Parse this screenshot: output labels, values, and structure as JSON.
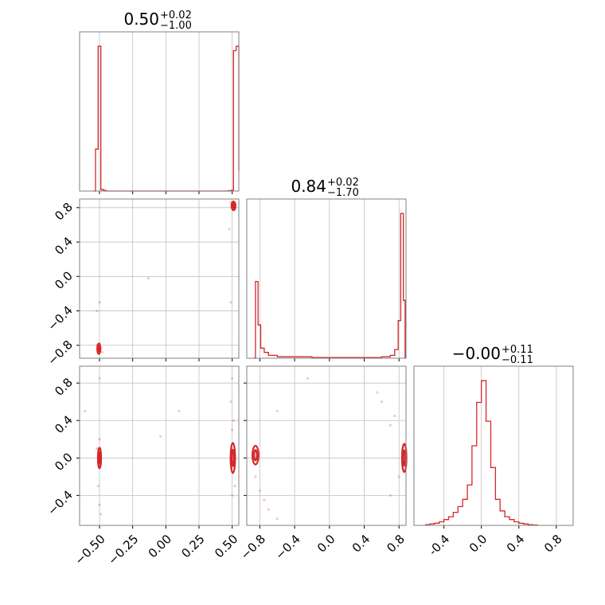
{
  "figure": {
    "color": "#d62728",
    "grid": true
  },
  "chart_data": [
    {
      "id": "hist-0",
      "type": "bar",
      "subtype": "step-histogram",
      "title": "0.50",
      "title_plus": "+0.02",
      "title_minus": "−1.00",
      "x": [
        -0.55,
        -0.53,
        -0.51,
        -0.49,
        -0.47,
        -0.45,
        0.45,
        0.47,
        0.49,
        0.51,
        0.53,
        0.55
      ],
      "values": [
        0,
        0.29,
        1.0,
        0.01,
        0.005,
        0,
        0,
        0.003,
        0.005,
        0.97,
        1.0,
        0.14
      ],
      "xlim": [
        -0.65,
        0.55
      ],
      "ylim": [
        0,
        1.1
      ]
    },
    {
      "id": "hist-1",
      "type": "bar",
      "subtype": "step-histogram",
      "title": "0.84",
      "title_plus": "+0.02",
      "title_minus": "−1.70",
      "x": [
        -0.88,
        -0.85,
        -0.82,
        -0.79,
        -0.75,
        -0.7,
        -0.6,
        -0.2,
        0.6,
        0.7,
        0.75,
        0.79,
        0.82,
        0.85,
        0.87
      ],
      "values": [
        0,
        0.53,
        0.23,
        0.07,
        0.04,
        0.02,
        0.01,
        0.005,
        0.01,
        0.02,
        0.06,
        0.26,
        1.0,
        0.4,
        0
      ],
      "xlim": [
        -0.95,
        0.88
      ],
      "ylim": [
        0,
        1.1
      ],
      "ticks": [
        "-0.8",
        "-0.4",
        "0.0",
        "0.4",
        "0.8"
      ]
    },
    {
      "id": "hist-2",
      "type": "bar",
      "subtype": "step-histogram",
      "title": "−0.00",
      "title_plus": "+0.11",
      "title_minus": "−0.11",
      "x": [
        -0.6,
        -0.55,
        -0.5,
        -0.45,
        -0.4,
        -0.35,
        -0.3,
        -0.25,
        -0.2,
        -0.15,
        -0.1,
        -0.05,
        0.0,
        0.05,
        0.1,
        0.15,
        0.2,
        0.25,
        0.3,
        0.35,
        0.4,
        0.45,
        0.5,
        0.55,
        0.6
      ],
      "values": [
        0.005,
        0.01,
        0.015,
        0.025,
        0.04,
        0.06,
        0.09,
        0.13,
        0.18,
        0.28,
        0.55,
        0.85,
        1.0,
        0.72,
        0.4,
        0.18,
        0.1,
        0.06,
        0.04,
        0.025,
        0.015,
        0.01,
        0.005,
        0.003,
        0.002
      ],
      "xlim": [
        -0.72,
        0.98
      ],
      "ylim": [
        0,
        1.1
      ],
      "ticks": [
        "-0.4",
        "0.0",
        "0.4",
        "0.8"
      ]
    },
    {
      "id": "corner-1-0",
      "type": "scatter",
      "subtype": "2d-density",
      "x_ticks": [
        "−0.50",
        "−0.25",
        "0.00",
        "0.25",
        "0.50"
      ],
      "y_ticks": [
        "−0.8",
        "−0.4",
        "0.0",
        "0.4",
        "0.8"
      ],
      "xlim": [
        -0.65,
        0.55
      ],
      "ylim": [
        -0.95,
        0.9
      ],
      "points": [
        [
          -0.51,
          -0.84
        ],
        [
          -0.5,
          -0.86
        ],
        [
          -0.49,
          -0.83
        ],
        [
          -0.52,
          -0.8
        ],
        [
          -0.5,
          -0.78
        ],
        [
          -0.48,
          -0.88
        ],
        [
          0.5,
          0.85
        ],
        [
          0.51,
          0.82
        ],
        [
          0.52,
          0.8
        ],
        [
          0.5,
          0.83
        ],
        [
          0.49,
          0.86
        ],
        [
          0.52,
          0.78
        ],
        [
          -0.13,
          -0.02
        ],
        [
          -0.5,
          -0.3
        ],
        [
          -0.52,
          -0.4
        ],
        [
          0.48,
          0.55
        ],
        [
          0.49,
          -0.3
        ]
      ],
      "contours": [
        {
          "cx": -0.505,
          "cy": -0.84,
          "rx": 0.012,
          "ry": 0.06
        },
        {
          "cx": 0.51,
          "cy": 0.82,
          "rx": 0.015,
          "ry": 0.05
        }
      ]
    },
    {
      "id": "corner-2-0",
      "type": "scatter",
      "subtype": "2d-density",
      "x_ticks": [
        "−0.50",
        "−0.25",
        "0.00",
        "0.25",
        "0.50"
      ],
      "y_ticks": [
        "−0.4",
        "0.0",
        "0.4",
        "0.8"
      ],
      "xlim": [
        -0.65,
        0.55
      ],
      "ylim": [
        -0.72,
        0.98
      ],
      "points": [
        [
          -0.5,
          -0.5
        ],
        [
          -0.51,
          -0.3
        ],
        [
          -0.49,
          -0.6
        ],
        [
          -0.5,
          0.2
        ],
        [
          -0.52,
          0.1
        ],
        [
          -0.5,
          -0.1
        ],
        [
          0.5,
          0.3
        ],
        [
          0.51,
          0.4
        ],
        [
          0.52,
          -0.3
        ],
        [
          0.5,
          -0.4
        ],
        [
          0.49,
          0.6
        ],
        [
          0.5,
          0.85
        ],
        [
          -0.61,
          0.5
        ],
        [
          -0.5,
          0.85
        ],
        [
          0.1,
          0.5
        ],
        [
          -0.04,
          0.23
        ]
      ],
      "contours": [
        {
          "cx": -0.5,
          "cy": 0.0,
          "rx": 0.012,
          "ry": 0.11
        },
        {
          "cx": 0.505,
          "cy": 0.0,
          "rx": 0.017,
          "ry": 0.16
        }
      ]
    },
    {
      "id": "corner-2-1",
      "type": "scatter",
      "subtype": "2d-density",
      "x_ticks": [
        "−0.8",
        "−0.4",
        "0.0",
        "0.4",
        "0.8"
      ],
      "y_ticks": [
        "−0.4",
        "0.0",
        "0.4",
        "0.8"
      ],
      "xlim": [
        -0.95,
        0.88
      ],
      "ylim": [
        -0.72,
        0.98
      ],
      "points": [
        [
          -0.85,
          -0.2
        ],
        [
          -0.8,
          -0.35
        ],
        [
          -0.75,
          -0.45
        ],
        [
          -0.7,
          -0.55
        ],
        [
          -0.6,
          -0.65
        ],
        [
          0.7,
          0.35
        ],
        [
          0.75,
          0.45
        ],
        [
          0.8,
          -0.2
        ],
        [
          0.7,
          -0.4
        ],
        [
          0.6,
          0.6
        ],
        [
          -0.6,
          0.5
        ],
        [
          -0.25,
          0.85
        ],
        [
          0.55,
          0.7
        ]
      ],
      "contours": [
        {
          "cx": -0.85,
          "cy": 0.03,
          "rx": 0.035,
          "ry": 0.1
        },
        {
          "cx": 0.86,
          "cy": 0.0,
          "rx": 0.025,
          "ry": 0.15
        }
      ]
    }
  ]
}
